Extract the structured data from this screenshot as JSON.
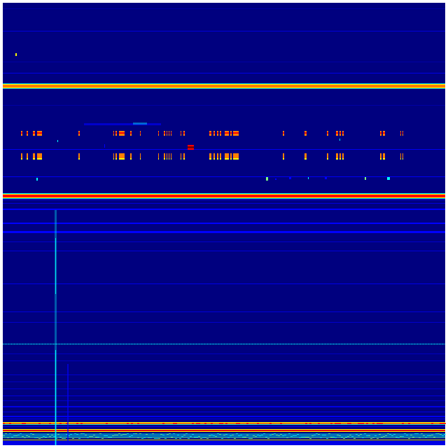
{
  "image": {
    "kind": "spectrogram",
    "colormap": [
      "#00007f",
      "#0000ff",
      "#00ffff",
      "#7fff7f",
      "#ffff00",
      "#ff7f00",
      "#ff0000",
      "#7f0000"
    ],
    "background_color": "#00007f",
    "axes_shown": false,
    "text_shown": false
  }
}
